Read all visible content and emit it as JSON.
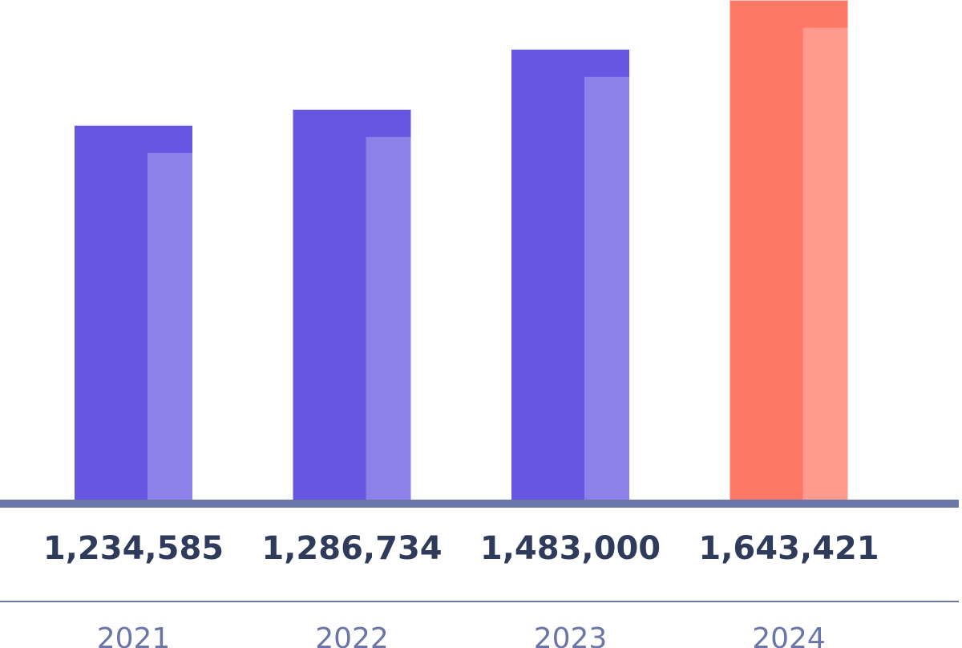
{
  "chart_data": {
    "type": "bar",
    "categories": [
      "2021",
      "2022",
      "2023",
      "2024"
    ],
    "values": [
      1234585,
      1286734,
      1483000,
      1643421
    ],
    "value_labels": [
      "1,234,585",
      "1,286,734",
      "1,483,000",
      "1,643,421"
    ],
    "colors": [
      "#6557e2",
      "#6557e2",
      "#6557e2",
      "#ff7866"
    ],
    "ylim": [
      0,
      1645000
    ]
  }
}
